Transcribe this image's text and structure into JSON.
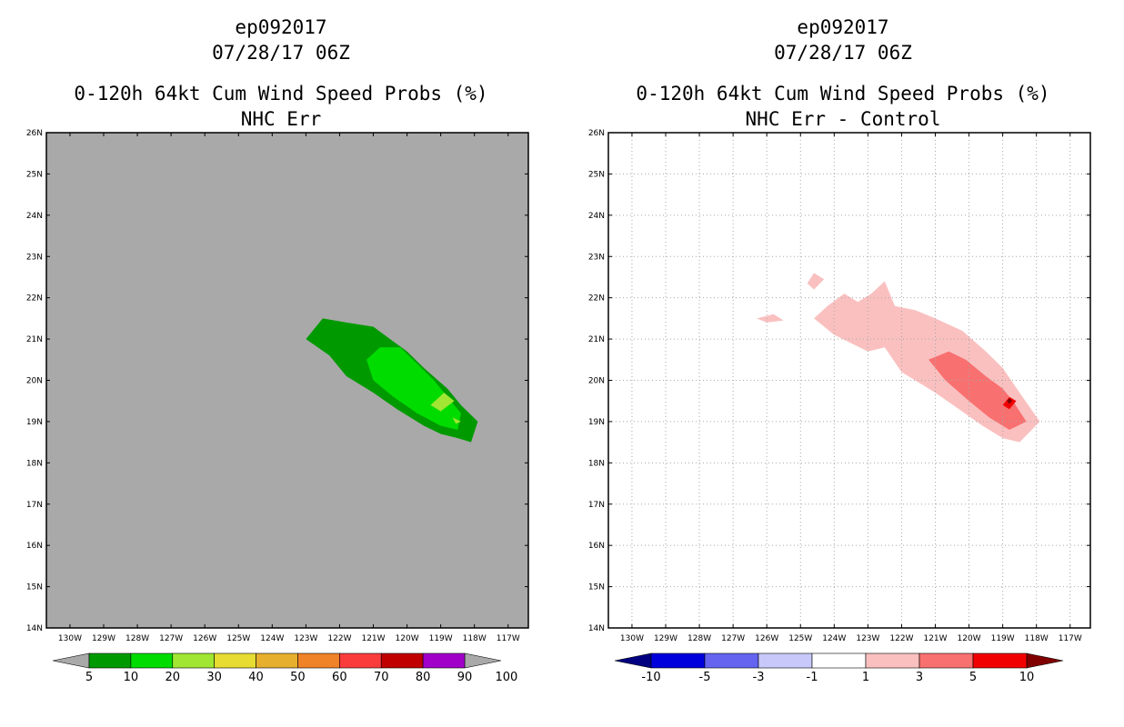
{
  "chart_data": [
    {
      "type": "contour-map",
      "storm_id": "ep092017",
      "datetime": "07/28/17 06Z",
      "title": "0-120h 64kt Cum Wind Speed Probs (%)",
      "subtitle": "NHC Err",
      "lon_range": [
        -130.7,
        -116.4
      ],
      "lat_range": [
        14,
        26
      ],
      "lon_ticks": [
        "130W",
        "129W",
        "128W",
        "127W",
        "126W",
        "125W",
        "124W",
        "123W",
        "122W",
        "121W",
        "120W",
        "119W",
        "118W",
        "117W"
      ],
      "lat_ticks": [
        "14N",
        "15N",
        "16N",
        "17N",
        "18N",
        "19N",
        "20N",
        "21N",
        "22N",
        "23N",
        "24N",
        "25N",
        "26N"
      ],
      "background": "#a9a9a9",
      "grid": false,
      "contours": [
        {
          "level": 5,
          "color": "#009a00",
          "polygon": [
            [
              -123.0,
              21.0
            ],
            [
              -122.5,
              21.5
            ],
            [
              -121.8,
              21.4
            ],
            [
              -121.0,
              21.3
            ],
            [
              -120.5,
              21.0
            ],
            [
              -120.0,
              20.7
            ],
            [
              -119.5,
              20.3
            ],
            [
              -118.8,
              19.8
            ],
            [
              -118.4,
              19.4
            ],
            [
              -117.9,
              19.0
            ],
            [
              -118.1,
              18.5
            ],
            [
              -118.5,
              18.6
            ],
            [
              -119.0,
              18.7
            ],
            [
              -119.5,
              18.9
            ],
            [
              -120.3,
              19.3
            ],
            [
              -121.0,
              19.7
            ],
            [
              -121.8,
              20.1
            ],
            [
              -122.3,
              20.6
            ]
          ]
        },
        {
          "level": 10,
          "color": "#00dc00",
          "polygon": [
            [
              -121.2,
              20.5
            ],
            [
              -120.8,
              20.8
            ],
            [
              -120.2,
              20.8
            ],
            [
              -119.7,
              20.4
            ],
            [
              -119.2,
              20.0
            ],
            [
              -118.8,
              19.6
            ],
            [
              -118.4,
              19.2
            ],
            [
              -118.5,
              18.8
            ],
            [
              -119.0,
              18.9
            ],
            [
              -119.7,
              19.2
            ],
            [
              -120.4,
              19.6
            ],
            [
              -121.0,
              20.0
            ]
          ]
        },
        {
          "level": 20,
          "color": "#a0e632",
          "polygon": [
            [
              -119.3,
              19.4
            ],
            [
              -118.9,
              19.7
            ],
            [
              -118.6,
              19.5
            ],
            [
              -119.0,
              19.25
            ]
          ]
        },
        {
          "level": 20,
          "color": "#a0e632",
          "polygon": [
            [
              -118.65,
              19.1
            ],
            [
              -118.4,
              19.0
            ],
            [
              -118.55,
              18.95
            ]
          ]
        }
      ],
      "colorbar": {
        "labels": [
          "5",
          "10",
          "20",
          "30",
          "40",
          "50",
          "60",
          "70",
          "80",
          "90",
          "100"
        ],
        "colors": [
          "#009a00",
          "#00dc00",
          "#a0e632",
          "#e6dc32",
          "#e6af2d",
          "#f08228",
          "#fa3c3c",
          "#c00000",
          "#a000c8"
        ],
        "under_color": "#a9a9a9",
        "over_color": "#a9a9a9"
      }
    },
    {
      "type": "contour-map",
      "storm_id": "ep092017",
      "datetime": "07/28/17 06Z",
      "title": "0-120h 64kt Cum Wind Speed Probs (%)",
      "subtitle": "NHC Err - Control",
      "lon_range": [
        -130.7,
        -116.4
      ],
      "lat_range": [
        14,
        26
      ],
      "lon_ticks": [
        "130W",
        "129W",
        "128W",
        "127W",
        "126W",
        "125W",
        "124W",
        "123W",
        "122W",
        "121W",
        "120W",
        "119W",
        "118W",
        "117W"
      ],
      "lat_ticks": [
        "14N",
        "15N",
        "16N",
        "17N",
        "18N",
        "19N",
        "20N",
        "21N",
        "22N",
        "23N",
        "24N",
        "25N",
        "26N"
      ],
      "background": "#ffffff",
      "grid": true,
      "contours": [
        {
          "level": 1,
          "color": "#fac0c0",
          "polygon": [
            [
              -124.6,
              21.5
            ],
            [
              -124.2,
              21.8
            ],
            [
              -123.7,
              22.1
            ],
            [
              -123.3,
              21.9
            ],
            [
              -122.9,
              22.1
            ],
            [
              -122.5,
              22.4
            ],
            [
              -122.2,
              21.8
            ],
            [
              -121.6,
              21.7
            ],
            [
              -121.0,
              21.5
            ],
            [
              -120.2,
              21.2
            ],
            [
              -119.5,
              20.7
            ],
            [
              -119.0,
              20.3
            ],
            [
              -118.5,
              19.7
            ],
            [
              -117.9,
              19.0
            ],
            [
              -118.5,
              18.5
            ],
            [
              -119.0,
              18.6
            ],
            [
              -119.6,
              18.9
            ],
            [
              -120.3,
              19.3
            ],
            [
              -121.0,
              19.7
            ],
            [
              -121.6,
              20.0
            ],
            [
              -122.0,
              20.2
            ],
            [
              -122.5,
              20.8
            ],
            [
              -123.0,
              20.7
            ],
            [
              -123.5,
              20.9
            ],
            [
              -124.0,
              21.1
            ]
          ]
        },
        {
          "level": 1,
          "color": "#fac0c0",
          "polygon": [
            [
              -126.3,
              21.5
            ],
            [
              -125.8,
              21.6
            ],
            [
              -125.5,
              21.45
            ],
            [
              -126.0,
              21.4
            ]
          ]
        },
        {
          "level": 1,
          "color": "#fac0c0",
          "polygon": [
            [
              -124.8,
              22.35
            ],
            [
              -124.6,
              22.6
            ],
            [
              -124.3,
              22.45
            ],
            [
              -124.6,
              22.2
            ]
          ]
        },
        {
          "level": 3,
          "color": "#f87070",
          "polygon": [
            [
              -121.2,
              20.5
            ],
            [
              -120.6,
              20.7
            ],
            [
              -120.1,
              20.5
            ],
            [
              -119.5,
              20.1
            ],
            [
              -119.0,
              19.8
            ],
            [
              -118.7,
              19.5
            ],
            [
              -118.3,
              19.0
            ],
            [
              -118.8,
              18.8
            ],
            [
              -119.4,
              19.1
            ],
            [
              -120.0,
              19.5
            ],
            [
              -120.7,
              20.0
            ]
          ]
        },
        {
          "level": 5,
          "color": "#f00000",
          "polygon": [
            [
              -119.0,
              19.4
            ],
            [
              -118.8,
              19.6
            ],
            [
              -118.6,
              19.5
            ],
            [
              -118.8,
              19.3
            ]
          ]
        },
        {
          "level": 10,
          "color": "#800000",
          "polygon": [
            [
              -118.88,
              19.5
            ],
            [
              -118.8,
              19.57
            ],
            [
              -118.72,
              19.5
            ],
            [
              -118.8,
              19.43
            ]
          ]
        }
      ],
      "colorbar": {
        "labels": [
          "-10",
          "-5",
          "-3",
          "-1",
          "1",
          "3",
          "5",
          "10"
        ],
        "colors": [
          "#0000dc",
          "#6464f0",
          "#c8c8fa",
          "#ffffff",
          "#fac0c0",
          "#f87070",
          "#f00000"
        ],
        "under_color": "#000080",
        "over_color": "#800000"
      }
    }
  ]
}
